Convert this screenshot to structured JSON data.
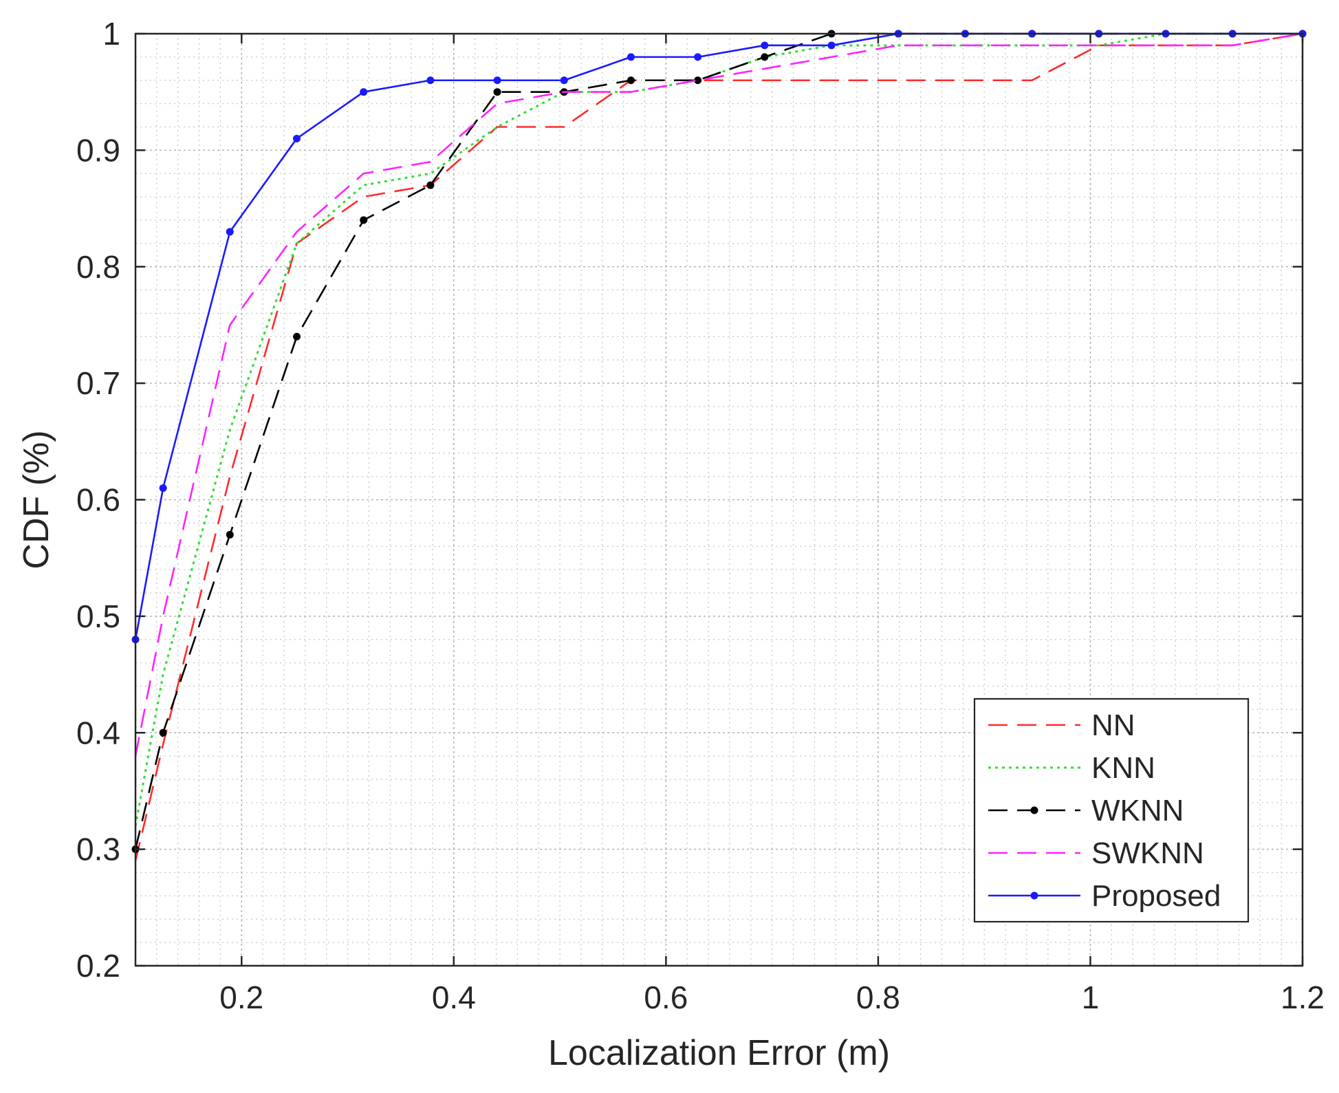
{
  "chart_data": {
    "type": "line",
    "xlabel": "Localization Error (m)",
    "ylabel": "CDF (%)",
    "xlim": [
      0.1,
      1.2
    ],
    "ylim": [
      0.2,
      1.0
    ],
    "xticks": [
      0.2,
      0.4,
      0.6,
      0.8,
      1.0,
      1.2
    ],
    "xtick_labels": [
      "0.2",
      "0.4",
      "0.6",
      "0.8",
      "1",
      "1.2"
    ],
    "yticks": [
      0.2,
      0.3,
      0.4,
      0.5,
      0.6,
      0.7,
      0.8,
      0.9,
      1.0
    ],
    "ytick_labels": [
      "0.2",
      "0.3",
      "0.4",
      "0.5",
      "0.6",
      "0.7",
      "0.8",
      "0.9",
      "1"
    ],
    "grid": true,
    "minor_grid": true,
    "legend_position": "bottom-right",
    "x": [
      0.1,
      0.126,
      0.189,
      0.252,
      0.315,
      0.378,
      0.441,
      0.504,
      0.567,
      0.63,
      0.693,
      0.756,
      0.819,
      0.882,
      0.945,
      1.008,
      1.071,
      1.134,
      1.2
    ],
    "series": [
      {
        "name": "NN",
        "color": "#ff2a2a",
        "style": "dashed",
        "marker": false,
        "values": [
          0.29,
          0.39,
          0.62,
          0.82,
          0.86,
          0.87,
          0.92,
          0.92,
          0.96,
          0.96,
          0.96,
          0.96,
          0.96,
          0.96,
          0.96,
          0.99,
          0.99,
          0.99,
          1.0
        ]
      },
      {
        "name": "KNN",
        "color": "#33dd33",
        "style": "dotted",
        "marker": false,
        "values": [
          0.32,
          0.45,
          0.66,
          0.82,
          0.87,
          0.88,
          0.92,
          0.95,
          0.95,
          0.96,
          0.98,
          0.99,
          0.99,
          0.99,
          0.99,
          0.99,
          1.0,
          1.0,
          1.0
        ]
      },
      {
        "name": "WKNN",
        "color": "#000000",
        "style": "dashed",
        "marker": true,
        "values": [
          0.3,
          0.4,
          0.57,
          0.74,
          0.84,
          0.87,
          0.95,
          0.95,
          0.96,
          0.96,
          0.98,
          1.0,
          1.0,
          1.0,
          1.0,
          1.0,
          1.0,
          1.0,
          1.0
        ]
      },
      {
        "name": "SWKNN",
        "color": "#ff22ff",
        "style": "dashed",
        "marker": false,
        "values": [
          0.38,
          0.5,
          0.75,
          0.83,
          0.88,
          0.89,
          0.94,
          0.95,
          0.95,
          0.96,
          0.97,
          0.98,
          0.99,
          0.99,
          0.99,
          0.99,
          0.99,
          0.99,
          1.0
        ]
      },
      {
        "name": "Proposed",
        "color": "#1a1aff",
        "style": "solid",
        "marker": true,
        "values": [
          0.48,
          0.61,
          0.83,
          0.91,
          0.95,
          0.96,
          0.96,
          0.96,
          0.98,
          0.98,
          0.99,
          0.99,
          1.0,
          1.0,
          1.0,
          1.0,
          1.0,
          1.0,
          1.0
        ]
      }
    ]
  }
}
